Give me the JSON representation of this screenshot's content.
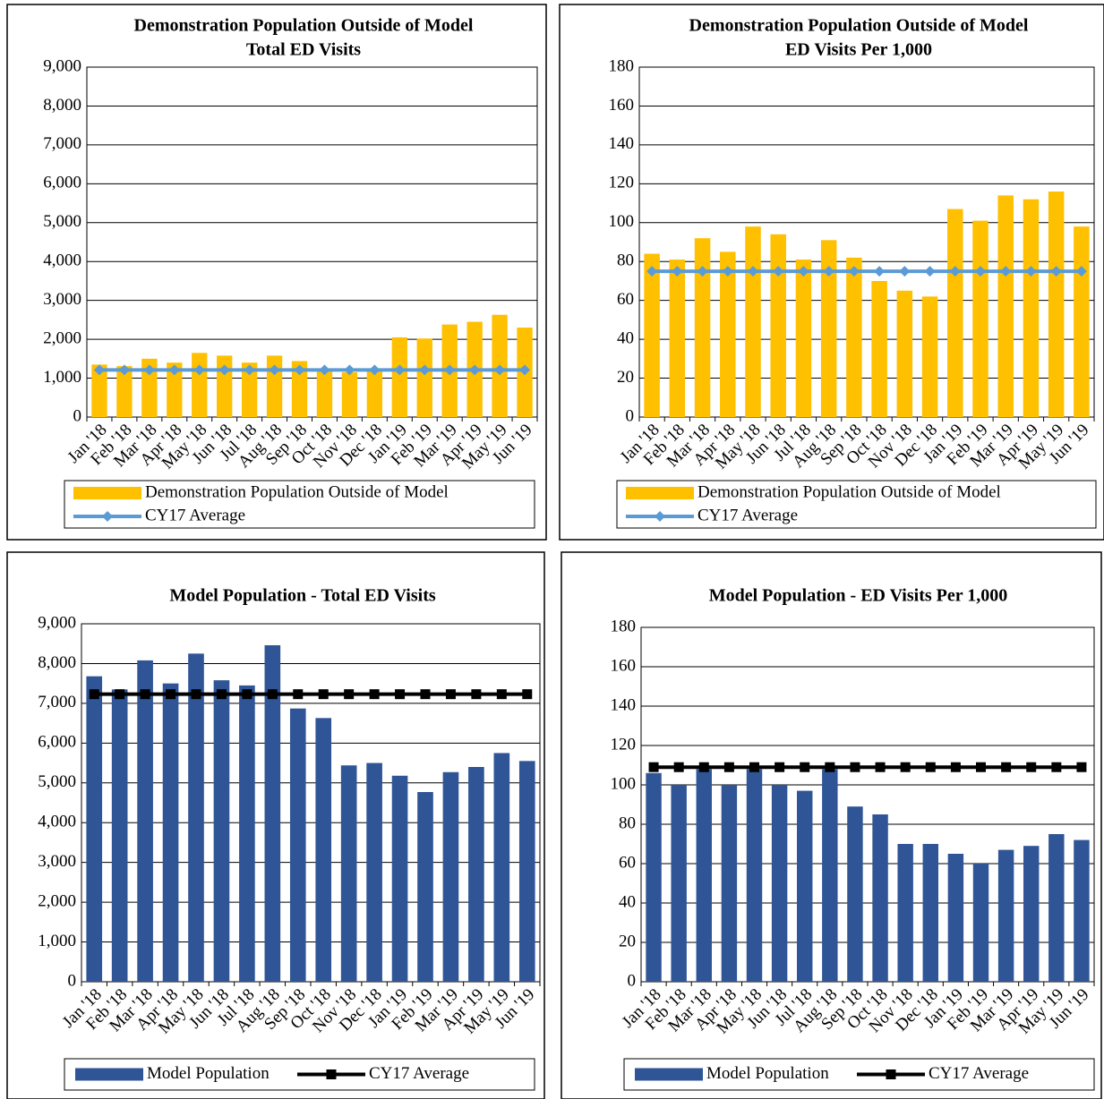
{
  "chart_data": [
    {
      "type": "bar",
      "title": [
        "Demonstration Population  Outside of Model",
        "Total ED Visits"
      ],
      "categories": [
        "Jan '18",
        "Feb '18",
        "Mar '18",
        "Apr '18",
        "May '18",
        "Jun '18",
        "Jul '18",
        "Aug '18",
        "Sep '18",
        "Oct '18",
        "Nov '18",
        "Dec '18",
        "Jan '19",
        "Feb '19",
        "Mar '19",
        "Apr '19",
        "May '19",
        "Jun '19"
      ],
      "series": [
        {
          "name": "Demonstration Population Outside of Model",
          "type": "bar",
          "color": "#ffc000",
          "values": [
            1350,
            1310,
            1500,
            1400,
            1650,
            1580,
            1400,
            1580,
            1440,
            1210,
            1150,
            1180,
            2050,
            2020,
            2380,
            2450,
            2630,
            2300
          ]
        },
        {
          "name": "CY17 Average",
          "type": "line",
          "color": "#5b9bd5",
          "marker": "diamond",
          "values": [
            1210,
            1210,
            1210,
            1210,
            1210,
            1210,
            1210,
            1210,
            1210,
            1210,
            1210,
            1210,
            1210,
            1210,
            1210,
            1210,
            1210,
            1210
          ]
        }
      ],
      "ylim": [
        0,
        9000
      ],
      "yticks": [
        0,
        {
          "value": 1000,
          "label": "1,000"
        },
        {
          "value": 2000,
          "label": "2,000"
        },
        {
          "value": 3000,
          "label": "3,000"
        },
        {
          "value": 4000,
          "label": "4,000"
        },
        {
          "value": 5000,
          "label": "5,000"
        },
        {
          "value": 6000,
          "label": "6,000"
        },
        {
          "value": 7000,
          "label": "7,000"
        },
        {
          "value": 8000,
          "label": "8,000"
        },
        {
          "value": 9000,
          "label": "9,000"
        }
      ],
      "grid": true,
      "legend": "bottom",
      "legend_layout": "stacked"
    },
    {
      "type": "bar",
      "title": [
        "Demonstration Population Outside of Model",
        "ED Visits Per 1,000"
      ],
      "categories": [
        "Jan '18",
        "Feb '18",
        "Mar '18",
        "Apr '18",
        "May '18",
        "Jun '18",
        "Jul '18",
        "Aug '18",
        "Sep '18",
        "Oct '18",
        "Nov '18",
        "Dec '18",
        "Jan '19",
        "Feb '19",
        "Mar '19",
        "Apr '19",
        "May '19",
        "Jun '19"
      ],
      "series": [
        {
          "name": "Demonstration Population Outside of Model",
          "type": "bar",
          "color": "#ffc000",
          "values": [
            84,
            81,
            92,
            85,
            98,
            94,
            81,
            91,
            82,
            70,
            65,
            62,
            107,
            101,
            114,
            112,
            116,
            98
          ]
        },
        {
          "name": "CY17 Average",
          "type": "line",
          "color": "#5b9bd5",
          "marker": "diamond",
          "values": [
            75,
            75,
            75,
            75,
            75,
            75,
            75,
            75,
            75,
            75,
            75,
            75,
            75,
            75,
            75,
            75,
            75,
            75
          ]
        }
      ],
      "ylim": [
        0,
        180
      ],
      "yticks": [
        0,
        20,
        40,
        60,
        80,
        100,
        120,
        140,
        160,
        180
      ],
      "grid": true,
      "legend": "bottom",
      "legend_layout": "stacked"
    },
    {
      "type": "bar",
      "title": [
        "Model Population  - Total ED Visits"
      ],
      "categories": [
        "Jan '18",
        "Feb '18",
        "Mar '18",
        "Apr '18",
        "May '18",
        "Jun '18",
        "Jul '18",
        "Aug '18",
        "Sep '18",
        "Oct '18",
        "Nov '18",
        "Dec '18",
        "Jan '19",
        "Feb '19",
        "Mar '19",
        "Apr '19",
        "May '19",
        "Jun '19"
      ],
      "series": [
        {
          "name": "Model Population",
          "type": "bar",
          "color": "#2f5597",
          "values": [
            7680,
            7350,
            8080,
            7500,
            8250,
            7580,
            7450,
            8460,
            6870,
            6630,
            5440,
            5500,
            5180,
            4770,
            5270,
            5400,
            5750,
            5550
          ]
        },
        {
          "name": "CY17 Average",
          "type": "line",
          "color": "#000000",
          "marker": "square",
          "values": [
            7230,
            7230,
            7230,
            7230,
            7230,
            7230,
            7230,
            7230,
            7230,
            7230,
            7230,
            7230,
            7230,
            7230,
            7230,
            7230,
            7230,
            7230
          ]
        }
      ],
      "ylim": [
        0,
        9000
      ],
      "yticks": [
        0,
        {
          "value": 1000,
          "label": "1,000"
        },
        {
          "value": 2000,
          "label": "2,000"
        },
        {
          "value": 3000,
          "label": "3,000"
        },
        {
          "value": 4000,
          "label": "4,000"
        },
        {
          "value": 5000,
          "label": "5,000"
        },
        {
          "value": 6000,
          "label": "6,000"
        },
        {
          "value": 7000,
          "label": "7,000"
        },
        {
          "value": 8000,
          "label": "8,000"
        },
        {
          "value": 9000,
          "label": "9,000"
        }
      ],
      "grid": true,
      "legend": "bottom",
      "legend_layout": "row"
    },
    {
      "type": "bar",
      "title": [
        "Model Population  - ED Visits Per 1,000"
      ],
      "categories": [
        "Jan '18",
        "Feb '18",
        "Mar '18",
        "Apr '18",
        "May '18",
        "Jun '18",
        "Jul '18",
        "Aug '18",
        "Sep '18",
        "Oct '18",
        "Nov '18",
        "Dec '18",
        "Jan '19",
        "Feb '19",
        "Mar '19",
        "Apr '19",
        "May '19",
        "Jun '19"
      ],
      "series": [
        {
          "name": "Model Population",
          "type": "bar",
          "color": "#2f5597",
          "values": [
            106,
            100,
            108,
            100,
            108,
            100,
            97,
            108,
            89,
            85,
            70,
            70,
            65,
            60,
            67,
            69,
            75,
            72
          ]
        },
        {
          "name": "CY17 Average",
          "type": "line",
          "color": "#000000",
          "marker": "square",
          "values": [
            109,
            109,
            109,
            109,
            109,
            109,
            109,
            109,
            109,
            109,
            109,
            109,
            109,
            109,
            109,
            109,
            109,
            109
          ]
        }
      ],
      "ylim": [
        0,
        180
      ],
      "yticks": [
        0,
        20,
        40,
        60,
        80,
        100,
        120,
        140,
        160,
        180
      ],
      "grid": true,
      "legend": "bottom",
      "legend_layout": "row"
    }
  ]
}
